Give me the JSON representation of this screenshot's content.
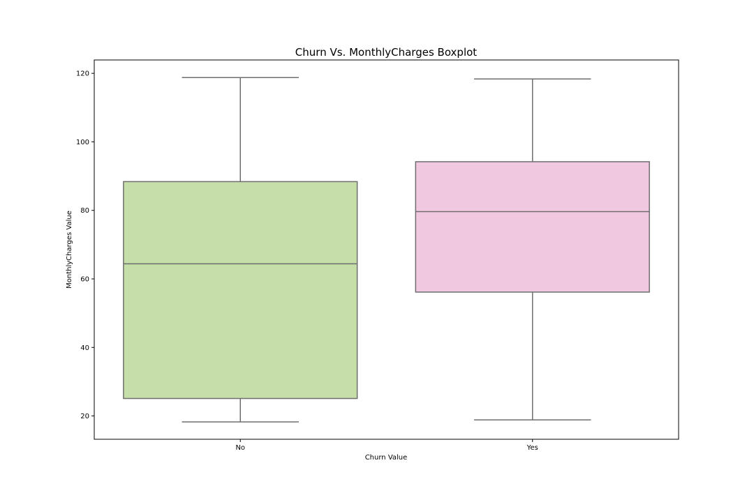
{
  "chart_data": {
    "type": "box",
    "title": "Churn Vs. MonthlyCharges Boxplot",
    "xlabel": "Churn Value",
    "ylabel": "MonthlyCharges Value",
    "categories": [
      "No",
      "Yes"
    ],
    "ylim": [
      13.2,
      123.9
    ],
    "yticks": [
      20,
      40,
      60,
      80,
      100,
      120
    ],
    "ytick_labels": [
      "20",
      "40",
      "60",
      "80",
      "100",
      "120"
    ],
    "grid": false,
    "legend": "none",
    "boxes": [
      {
        "category": "No",
        "whisker_low": 18.25,
        "q1": 25.1,
        "median": 64.4,
        "q3": 88.4,
        "whisker_high": 118.75,
        "color": "#c6dfa8"
      },
      {
        "category": "Yes",
        "whisker_low": 18.85,
        "q1": 56.15,
        "median": 79.65,
        "q3": 94.2,
        "whisker_high": 118.35,
        "color": "#f0c8e0"
      }
    ],
    "line_color": "#6e6e6e"
  }
}
